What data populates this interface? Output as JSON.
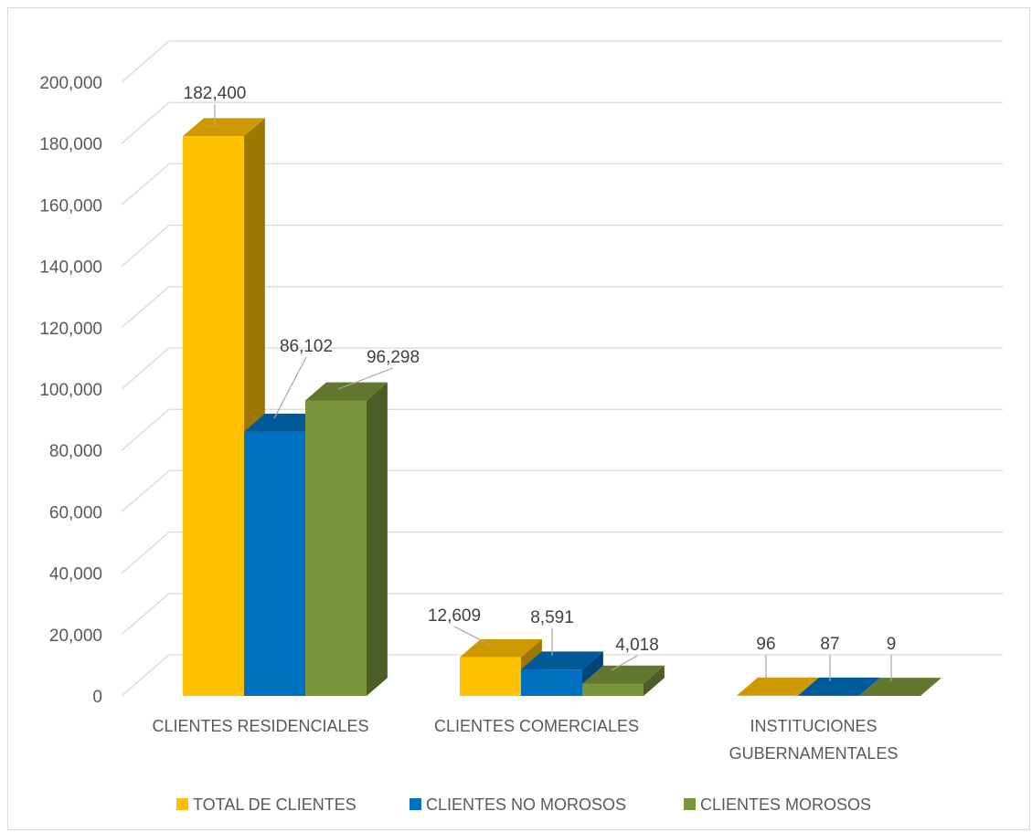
{
  "chart_data": {
    "type": "bar",
    "title": "",
    "xlabel": "",
    "ylabel": "",
    "ylim": [
      0,
      200000
    ],
    "yticks": [
      0,
      20000,
      40000,
      60000,
      80000,
      100000,
      120000,
      140000,
      160000,
      180000,
      200000
    ],
    "ytick_labels": [
      "0",
      "20,000",
      "40,000",
      "60,000",
      "80,000",
      "100,000",
      "120,000",
      "140,000",
      "160,000",
      "180,000",
      "200,000"
    ],
    "grid": true,
    "style": "3d-clustered-column",
    "legend_position": "bottom",
    "categories": [
      [
        "CLIENTES RESIDENCIALES"
      ],
      [
        "CLIENTES COMERCIALES"
      ],
      [
        "INSTITUCIONES",
        "GUBERNAMENTALES"
      ]
    ],
    "series": [
      {
        "name": "TOTAL DE CLIENTES",
        "color": "#FFC000",
        "values": [
          182400,
          12609,
          96
        ],
        "labels": [
          "182,400",
          "12,609",
          "96"
        ]
      },
      {
        "name": "CLIENTES NO MOROSOS",
        "color": "#0070C0",
        "values": [
          86102,
          8591,
          87
        ],
        "labels": [
          "86,102",
          "8,591",
          "87"
        ]
      },
      {
        "name": "CLIENTES MOROSOS",
        "color": "#7A963C",
        "values": [
          96298,
          4018,
          9
        ],
        "labels": [
          "96,298",
          "4,018",
          "9"
        ]
      }
    ]
  }
}
